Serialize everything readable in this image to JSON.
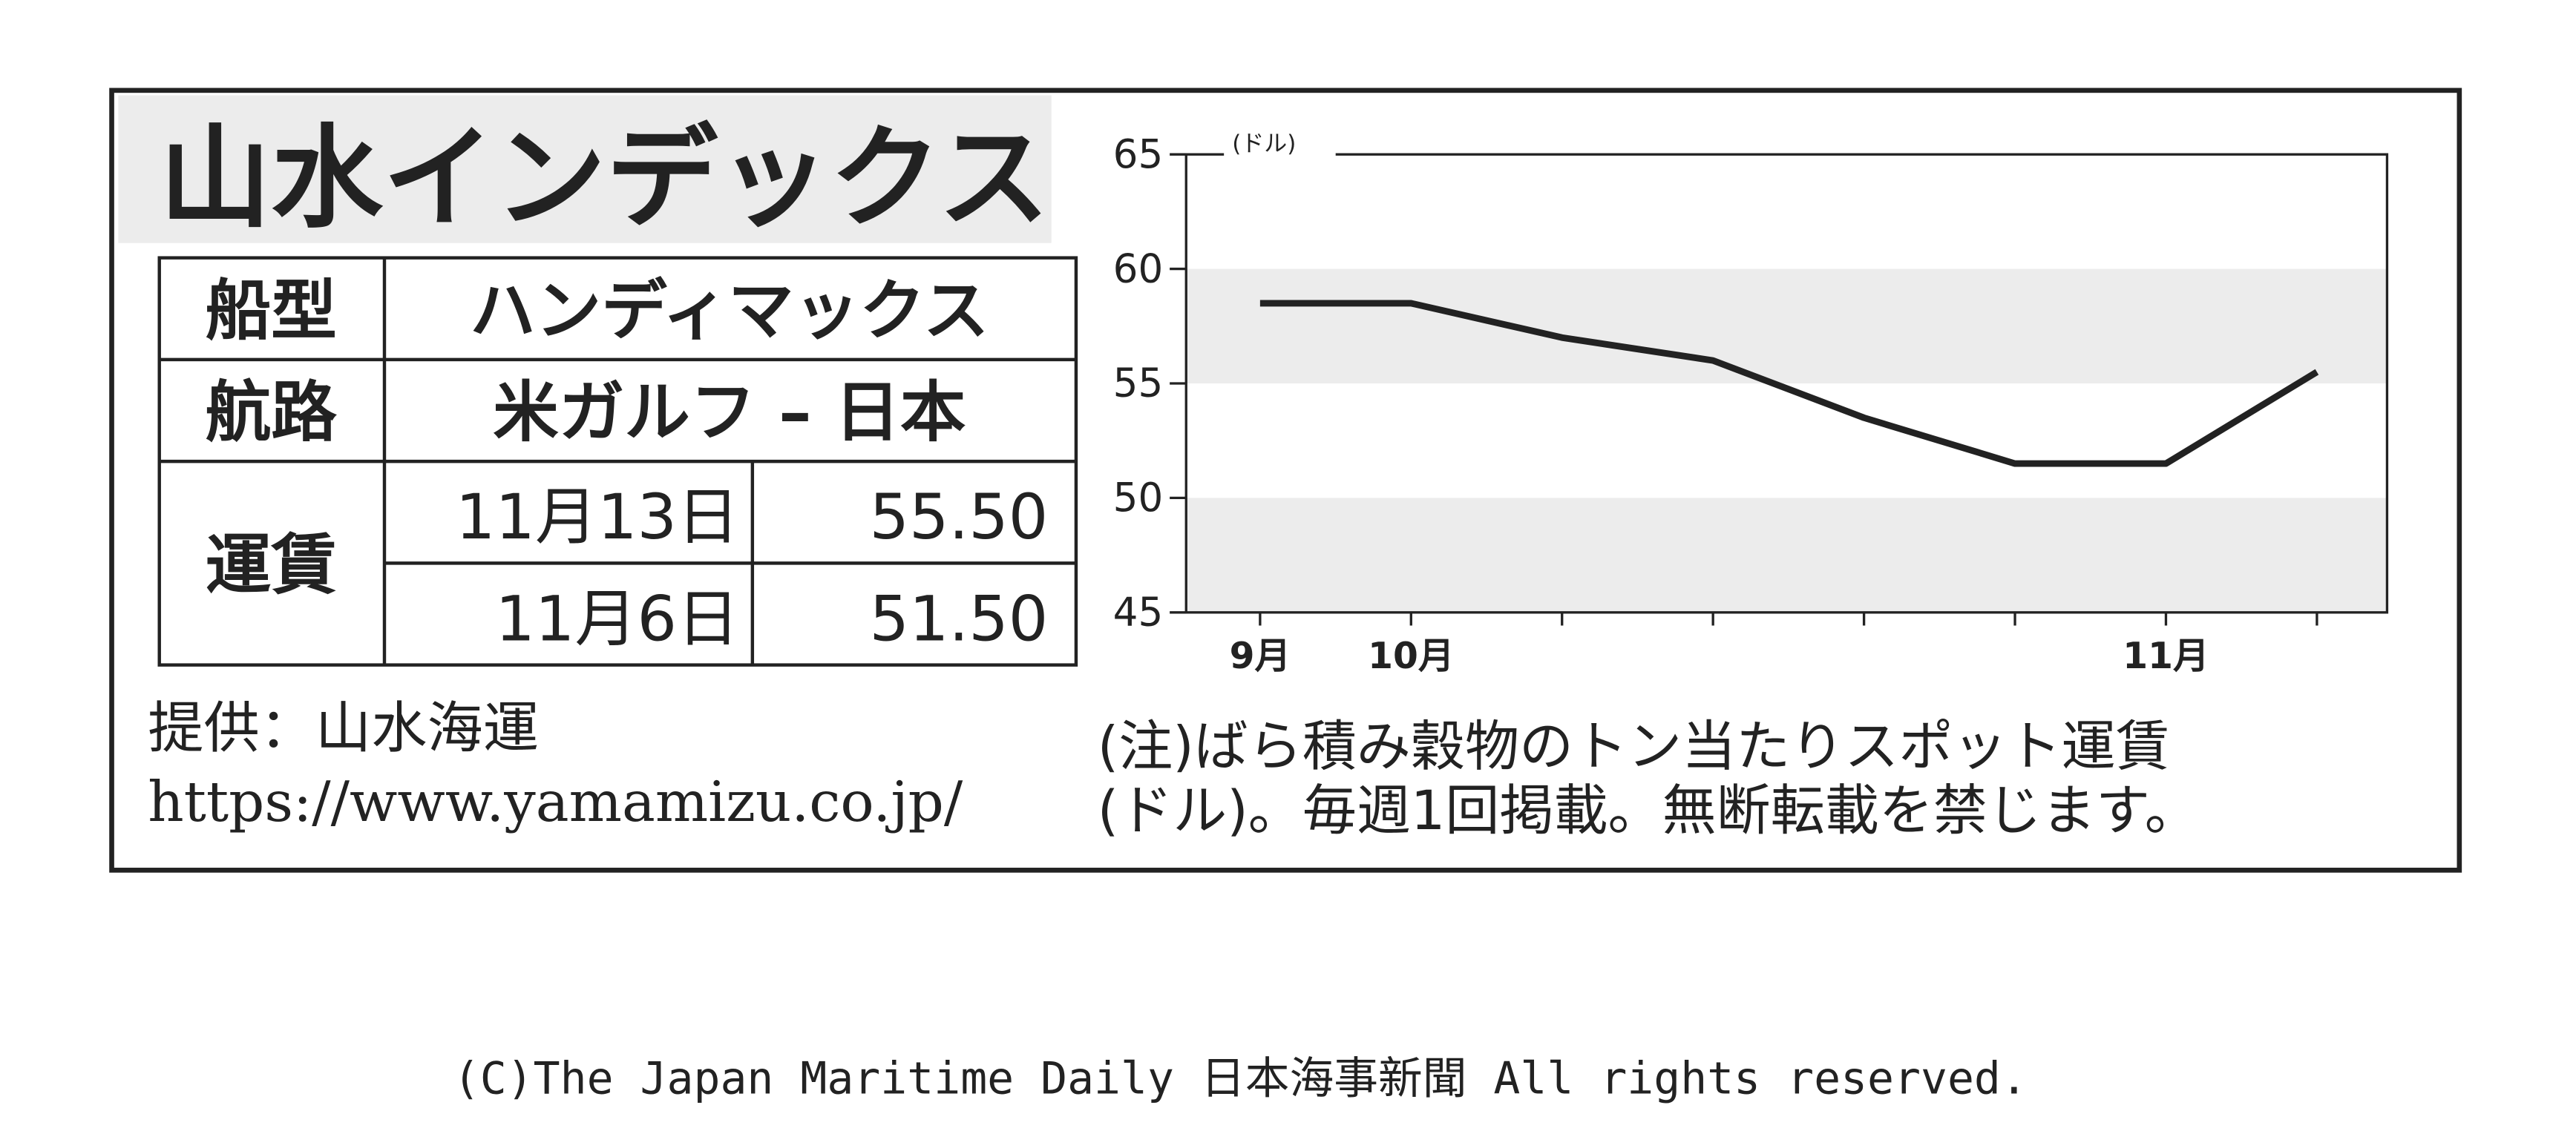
{
  "header": {
    "title": "山水インデックス"
  },
  "table": {
    "rows": [
      [
        "船型",
        "ハンディマックス"
      ],
      [
        "航路",
        "米ガルフ – 日本"
      ],
      [
        "運賃",
        "11月13日",
        "55.50"
      ],
      [
        "11月6日",
        "51.50"
      ]
    ]
  },
  "footer": {
    "provider": "提供：山水海運",
    "url": "https://www.yamamizu.co.jp/",
    "note": [
      "(注)ばら積み穀物のトン当たりスポット運賃",
      "(ドル)。毎週1回掲載。無断転載を禁じます。"
    ],
    "copyright": "(C)The Japan Maritime Daily 日本海事新聞 All rights reserved."
  },
  "chart_data": {
    "type": "line",
    "y_label": "(ドル)",
    "categories": [
      "9月",
      "10月",
      null,
      null,
      null,
      null,
      "11月",
      null
    ],
    "values": [
      58.5,
      58.5,
      57,
      56,
      53.5,
      51.5,
      51.5,
      55.5
    ],
    "color": "#222222",
    "ylim": [
      45,
      65
    ],
    "yticks": [
      45,
      50,
      55,
      60,
      65
    ],
    "bands": true
  }
}
